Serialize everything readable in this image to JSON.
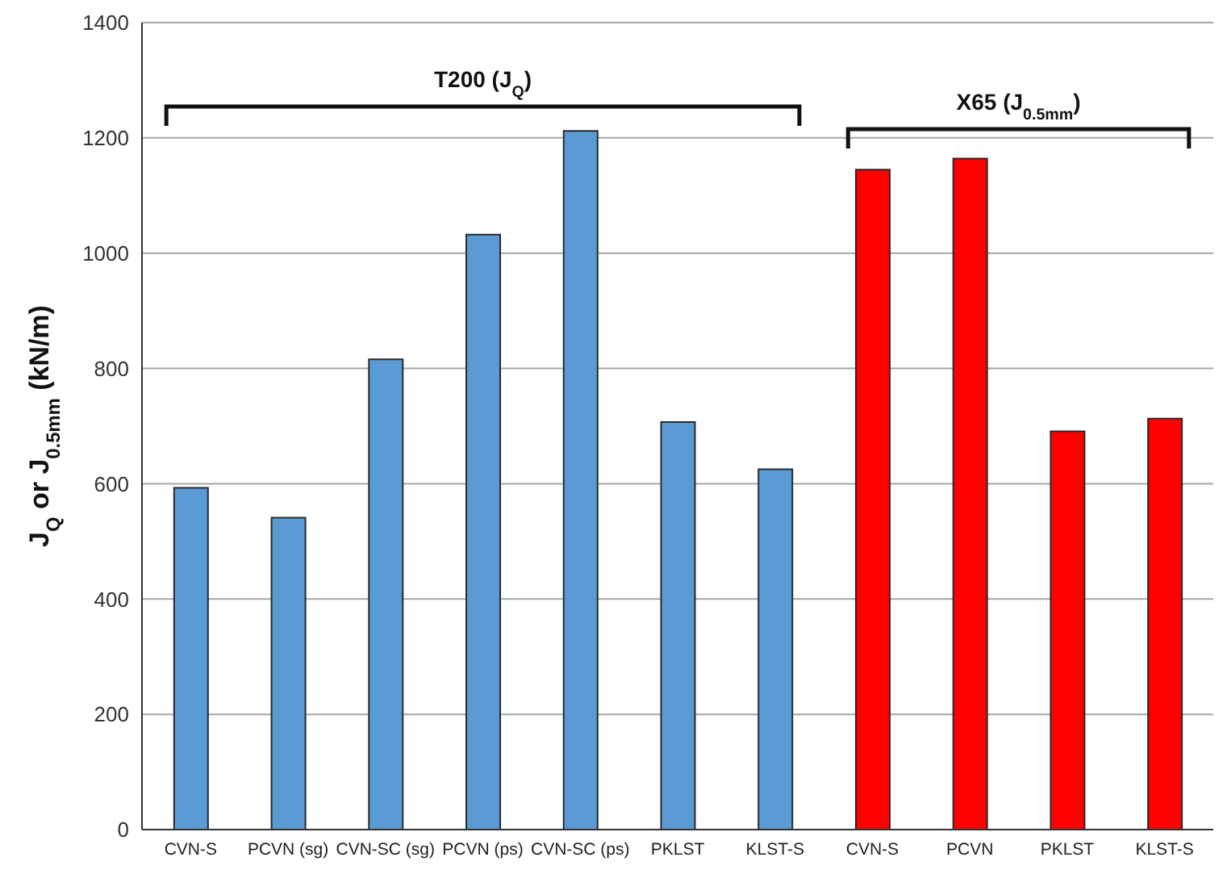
{
  "chart_data": {
    "type": "bar",
    "ylabel": "J$_{Q}$ or J$_{0.5mm}$  (kN/m)",
    "categories": [
      "CVN-S",
      "PCVN (sg)",
      "CVN-SC (sg)",
      "PCVN (ps)",
      "CVN-SC (ps)",
      "PKLST",
      "KLST-S",
      "CVN-S",
      "PCVN",
      "PKLST",
      "KLST-S"
    ],
    "values": [
      593,
      541,
      816,
      1032,
      1212,
      707,
      625,
      1145,
      1164,
      691,
      713
    ],
    "colors": [
      "#5b9bd5",
      "#5b9bd5",
      "#5b9bd5",
      "#5b9bd5",
      "#5b9bd5",
      "#5b9bd5",
      "#5b9bd5",
      "#ff0000",
      "#ff0000",
      "#ff0000",
      "#ff0000"
    ],
    "ylim": [
      0,
      1400
    ],
    "yticks": [
      0,
      200,
      400,
      600,
      800,
      1000,
      1200,
      1400
    ],
    "grid": "y",
    "annotations": [
      "T200 (J$_{Q}$)",
      "X65 (J$_{0.5mm}$)"
    ]
  }
}
